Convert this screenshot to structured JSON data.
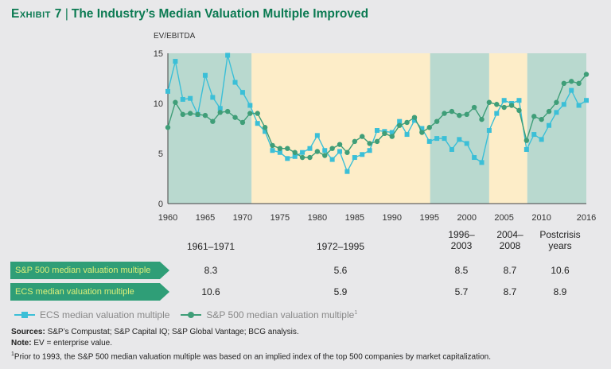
{
  "title": {
    "exhibit": "Exhibit 7",
    "text": "The Industry’s Median Valuation Multiple Improved"
  },
  "chart_data": {
    "type": "line",
    "ylabel": "EV/EBITDA",
    "ylim": [
      0,
      15
    ],
    "yticks": [
      0,
      5,
      10,
      15
    ],
    "xlim": [
      1960,
      2016
    ],
    "xticks": [
      1960,
      1965,
      1970,
      1975,
      1980,
      1985,
      1990,
      1995,
      2000,
      2005,
      2010,
      2016
    ],
    "grid": false,
    "legend_position": "bottom",
    "shaded_periods": [
      {
        "from": 1960,
        "to": 1971.2,
        "color": "#b9d9cf"
      },
      {
        "from": 1971.2,
        "to": 1995.1,
        "color": "#fdedc8"
      },
      {
        "from": 1995.1,
        "to": 2003,
        "color": "#b9d9cf"
      },
      {
        "from": 2003,
        "to": 2008.1,
        "color": "#fdedc8"
      },
      {
        "from": 2008.1,
        "to": 2016,
        "color": "#b9d9cf"
      }
    ],
    "x": [
      1960,
      1961,
      1962,
      1963,
      1964,
      1965,
      1966,
      1967,
      1968,
      1969,
      1970,
      1971,
      1972,
      1973,
      1974,
      1975,
      1976,
      1977,
      1978,
      1979,
      1980,
      1981,
      1982,
      1983,
      1984,
      1985,
      1986,
      1987,
      1988,
      1989,
      1990,
      1991,
      1992,
      1993,
      1994,
      1995,
      1996,
      1997,
      1998,
      1999,
      2000,
      2001,
      2002,
      2003,
      2004,
      2005,
      2006,
      2007,
      2008,
      2009,
      2010,
      2011,
      2012,
      2013,
      2014,
      2015,
      2016
    ],
    "series": [
      {
        "name": "ECS median valuation multiple",
        "marker": "square",
        "color": "#3bbfd7",
        "values": [
          11.2,
          14.2,
          10.4,
          10.5,
          8.9,
          12.8,
          10.6,
          9.5,
          14.8,
          12.1,
          11.1,
          9.8,
          8.0,
          7.2,
          5.3,
          5.1,
          4.5,
          4.7,
          5.1,
          5.5,
          6.8,
          5.3,
          4.4,
          5.2,
          3.2,
          4.6,
          4.9,
          5.3,
          7.3,
          7.2,
          7.1,
          8.2,
          6.9,
          8.3,
          7.5,
          6.2,
          6.5,
          6.5,
          5.4,
          6.4,
          6.0,
          4.6,
          4.1,
          7.3,
          9.0,
          10.3,
          10.0,
          10.3,
          5.4,
          6.9,
          6.4,
          7.8,
          9.1,
          9.9,
          11.3,
          9.8,
          10.3
        ]
      },
      {
        "name": "S&P 500 median valuation multiple",
        "footnote": "1",
        "marker": "circle",
        "color": "#3f9e78",
        "values": [
          7.6,
          10.1,
          8.9,
          9.0,
          8.9,
          8.8,
          8.2,
          9.1,
          9.2,
          8.6,
          8.1,
          9.0,
          9.0,
          7.6,
          5.8,
          5.5,
          5.5,
          5.1,
          4.6,
          4.6,
          5.2,
          4.8,
          5.5,
          5.9,
          5.1,
          6.2,
          6.7,
          6.0,
          6.2,
          7.0,
          6.7,
          7.8,
          8.1,
          8.6,
          7.1,
          7.6,
          8.2,
          9.0,
          9.2,
          8.8,
          8.9,
          9.6,
          8.4,
          10.1,
          9.9,
          9.6,
          9.8,
          9.3,
          6.3,
          8.7,
          8.4,
          9.2,
          10.1,
          12.0,
          12.2,
          12.0,
          12.9
        ]
      }
    ]
  },
  "table": {
    "columns": [
      "1961–1971",
      "1972–1995",
      "1996–\n2003",
      "2004–\n2008",
      "Postcrisis\nyears"
    ],
    "rows": [
      {
        "label": "S&P 500 median valuation multiple",
        "values": [
          "8.3",
          "5.6",
          "8.5",
          "8.7",
          "10.6"
        ]
      },
      {
        "label": "ECS median valuation multiple",
        "values": [
          "10.6",
          "5.9",
          "5.7",
          "8.7",
          "8.9"
        ]
      }
    ]
  },
  "notes": {
    "sources_label": "Sources:",
    "sources": " S&P’s Compustat; S&P Capital IQ; S&P Global Vantage; BCG analysis.",
    "note_label": "Note:",
    "note": " EV = enterprise value.",
    "footnote_mark": "1",
    "footnote": "Prior to 1993, the S&P 500 median valuation multiple was based on an implied index of the top 500 companies by market capitalization."
  }
}
